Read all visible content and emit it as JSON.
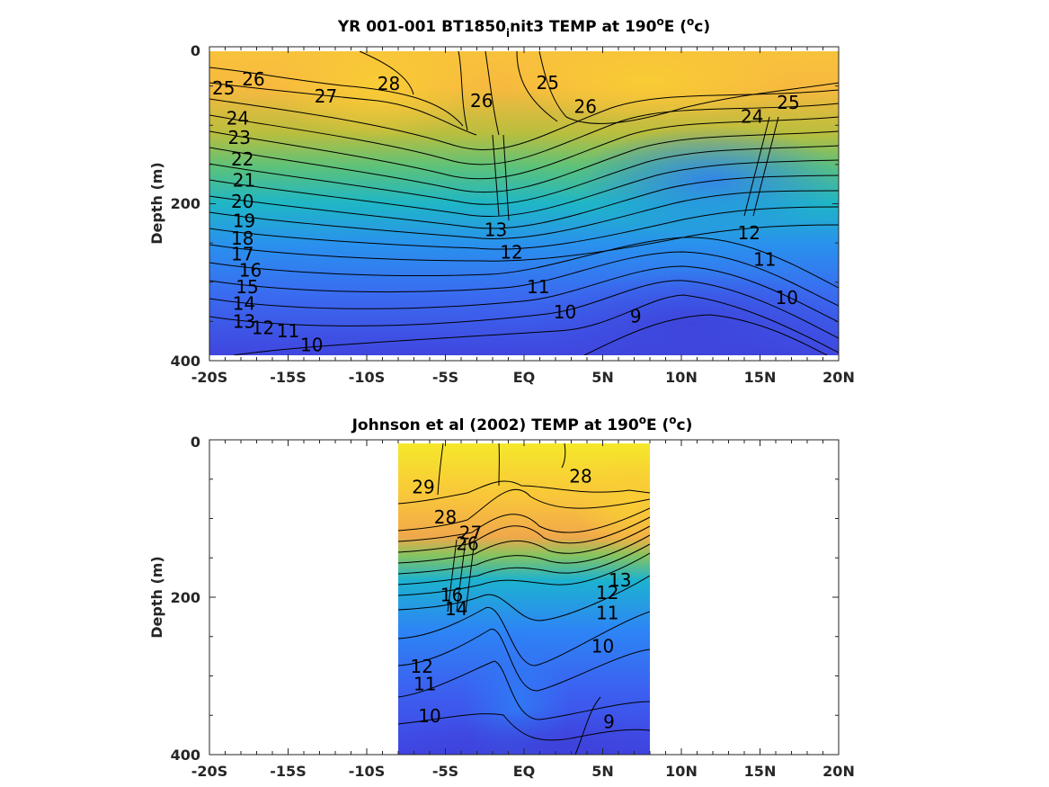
{
  "colors": {
    "background": "#ffffff",
    "axis": "#262626",
    "contour": "#000000",
    "colormap": [
      "#3e26a8",
      "#4a4ee6",
      "#2d8af8",
      "#1cb1d6",
      "#36c2a2",
      "#84c45d",
      "#cbbd3a",
      "#f9be3d",
      "#f9e31d",
      "#f9fb0e"
    ]
  },
  "chart_data": [
    {
      "type": "heatmap",
      "title": "YR 001-001 BT1850",
      "title_subscript": "i",
      "title_rest": "nit3 TEMP at 190",
      "title_sup1": "o",
      "title_mid": "E (",
      "title_sup2": "o",
      "title_end": "c)",
      "xlabel": "",
      "ylabel": "Depth (m)",
      "x_ticks": [
        "-20S",
        "-15S",
        "-10S",
        "-5S",
        "EQ",
        "5N",
        "10N",
        "15N",
        "20N"
      ],
      "x_tick_values": [
        -20,
        -15,
        -10,
        -5,
        0,
        5,
        10,
        15,
        20
      ],
      "y_ticks": [
        "0",
        "200",
        "400"
      ],
      "y_tick_values": [
        0,
        200,
        400
      ],
      "xlim": [
        -20,
        20
      ],
      "ylim": [
        0,
        400
      ],
      "data_extent_x": [
        -20,
        20
      ],
      "grid": false,
      "contour_levels": [
        9,
        10,
        11,
        12,
        13,
        14,
        15,
        16,
        17,
        18,
        19,
        20,
        21,
        22,
        23,
        24,
        25,
        26,
        27,
        28
      ],
      "series": [
        {
          "name": "",
          "label": "10",
          "lat": -13.5,
          "depth": 380
        },
        {
          "name": "",
          "label": "11",
          "lat": -15.0,
          "depth": 362
        },
        {
          "name": "",
          "label": "12",
          "lat": -16.6,
          "depth": 358
        },
        {
          "name": "",
          "label": "13",
          "lat": -17.8,
          "depth": 350
        },
        {
          "name": "",
          "label": "14",
          "lat": -17.8,
          "depth": 327
        },
        {
          "name": "",
          "label": "15",
          "lat": -17.6,
          "depth": 306
        },
        {
          "name": "",
          "label": "16",
          "lat": -17.4,
          "depth": 285
        },
        {
          "name": "",
          "label": "17",
          "lat": -17.9,
          "depth": 264
        },
        {
          "name": "",
          "label": "18",
          "lat": -17.9,
          "depth": 244
        },
        {
          "name": "",
          "label": "19",
          "lat": -17.8,
          "depth": 222
        },
        {
          "name": "",
          "label": "20",
          "lat": -17.9,
          "depth": 197
        },
        {
          "name": "",
          "label": "21",
          "lat": -17.8,
          "depth": 170
        },
        {
          "name": "",
          "label": "22",
          "lat": -17.9,
          "depth": 143
        },
        {
          "name": "",
          "label": "23",
          "lat": -18.1,
          "depth": 116
        },
        {
          "name": "",
          "label": "24",
          "lat": -18.2,
          "depth": 91
        },
        {
          "name": "",
          "label": "25",
          "lat": -19.1,
          "depth": 53
        },
        {
          "name": "",
          "label": "26",
          "lat": -17.2,
          "depth": 41
        },
        {
          "name": "",
          "label": "27",
          "lat": -12.6,
          "depth": 63
        },
        {
          "name": "",
          "label": "28",
          "lat": -8.6,
          "depth": 47
        },
        {
          "name": "",
          "label": "26",
          "lat": -2.7,
          "depth": 69
        },
        {
          "name": "",
          "label": "25",
          "lat": 1.5,
          "depth": 46
        },
        {
          "name": "",
          "label": "26",
          "lat": 3.9,
          "depth": 76
        },
        {
          "name": "",
          "label": "13",
          "lat": -1.8,
          "depth": 233
        },
        {
          "name": "",
          "label": "12",
          "lat": -0.8,
          "depth": 262
        },
        {
          "name": "",
          "label": "11",
          "lat": 0.9,
          "depth": 306
        },
        {
          "name": "",
          "label": "10",
          "lat": 2.6,
          "depth": 338
        },
        {
          "name": "",
          "label": "9",
          "lat": 7.1,
          "depth": 343
        },
        {
          "name": "",
          "label": "25",
          "lat": 16.8,
          "depth": 71
        },
        {
          "name": "",
          "label": "24",
          "lat": 14.5,
          "depth": 89
        },
        {
          "name": "",
          "label": "12",
          "lat": 14.3,
          "depth": 237
        },
        {
          "name": "",
          "label": "11",
          "lat": 15.3,
          "depth": 271
        },
        {
          "name": "",
          "label": "10",
          "lat": 16.7,
          "depth": 320
        }
      ]
    },
    {
      "type": "heatmap",
      "title": "Johnson et al (2002) TEMP at 190",
      "title_sup1": "o",
      "title_mid": "E (",
      "title_sup2": "o",
      "title_end": "c)",
      "xlabel": "",
      "ylabel": "Depth (m)",
      "x_ticks": [
        "-20S",
        "-15S",
        "-10S",
        "-5S",
        "EQ",
        "5N",
        "10N",
        "15N",
        "20N"
      ],
      "x_tick_values": [
        -20,
        -15,
        -10,
        -5,
        0,
        5,
        10,
        15,
        20
      ],
      "y_ticks": [
        "0",
        "200",
        "400"
      ],
      "y_tick_values": [
        0,
        200,
        400
      ],
      "xlim": [
        -20,
        20
      ],
      "ylim": [
        0,
        400
      ],
      "data_extent_x": [
        -8,
        8
      ],
      "grid": false,
      "contour_levels": [
        9,
        10,
        11,
        12,
        13,
        14,
        15,
        16,
        17,
        18,
        19,
        20,
        21,
        22,
        23,
        24,
        25,
        26,
        27,
        28,
        29
      ],
      "series": [
        {
          "name": "",
          "label": "29",
          "lat": -6.4,
          "depth": 60
        },
        {
          "name": "",
          "label": "28",
          "lat": -5.0,
          "depth": 98
        },
        {
          "name": "",
          "label": "27",
          "lat": -3.4,
          "depth": 118
        },
        {
          "name": "",
          "label": "26",
          "lat": -3.6,
          "depth": 132
        },
        {
          "name": "",
          "label": "14",
          "lat": -4.3,
          "depth": 215
        },
        {
          "name": "",
          "label": "16",
          "lat": -4.6,
          "depth": 197
        },
        {
          "name": "",
          "label": "28",
          "lat": 3.6,
          "depth": 46
        },
        {
          "name": "",
          "label": "13",
          "lat": 6.1,
          "depth": 178
        },
        {
          "name": "",
          "label": "12",
          "lat": 5.3,
          "depth": 194
        },
        {
          "name": "",
          "label": "11",
          "lat": 5.3,
          "depth": 220
        },
        {
          "name": "",
          "label": "10",
          "lat": 5.0,
          "depth": 262
        },
        {
          "name": "",
          "label": "12",
          "lat": -6.5,
          "depth": 288
        },
        {
          "name": "",
          "label": "11",
          "lat": -6.3,
          "depth": 310
        },
        {
          "name": "",
          "label": "10",
          "lat": -6.0,
          "depth": 351
        },
        {
          "name": "",
          "label": "9",
          "lat": 5.4,
          "depth": 358
        }
      ]
    }
  ]
}
